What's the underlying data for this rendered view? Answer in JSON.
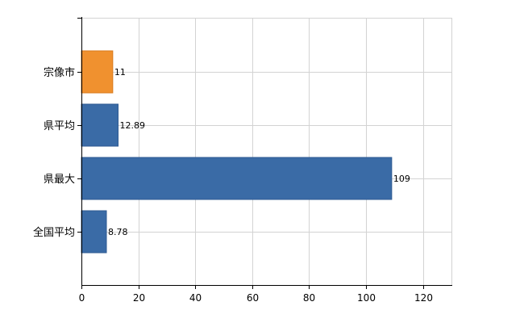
{
  "chart_data": {
    "type": "bar",
    "orientation": "horizontal",
    "categories": [
      "宗像市",
      "県平均",
      "県最大",
      "全国平均"
    ],
    "values": [
      11,
      12.89,
      109,
      8.78
    ],
    "data_labels": [
      "11",
      "12.89",
      "109",
      "8.78"
    ],
    "bar_colors": [
      "#f0912f",
      "#3a6ba6",
      "#3a6ba6",
      "#3a6ba6"
    ],
    "bar_stroke_colors": [
      "#d97a1e",
      "#2e5a92",
      "#2e5a92",
      "#2e5a92"
    ],
    "xlim": [
      0,
      130
    ],
    "x_ticks": [
      0,
      20,
      40,
      60,
      80,
      100,
      120
    ],
    "x_tick_labels": [
      "0",
      "20",
      "40",
      "60",
      "80",
      "100",
      "120"
    ],
    "grid": true,
    "grid_color": "#d3d3d3",
    "title": "",
    "xlabel": "",
    "ylabel": ""
  }
}
